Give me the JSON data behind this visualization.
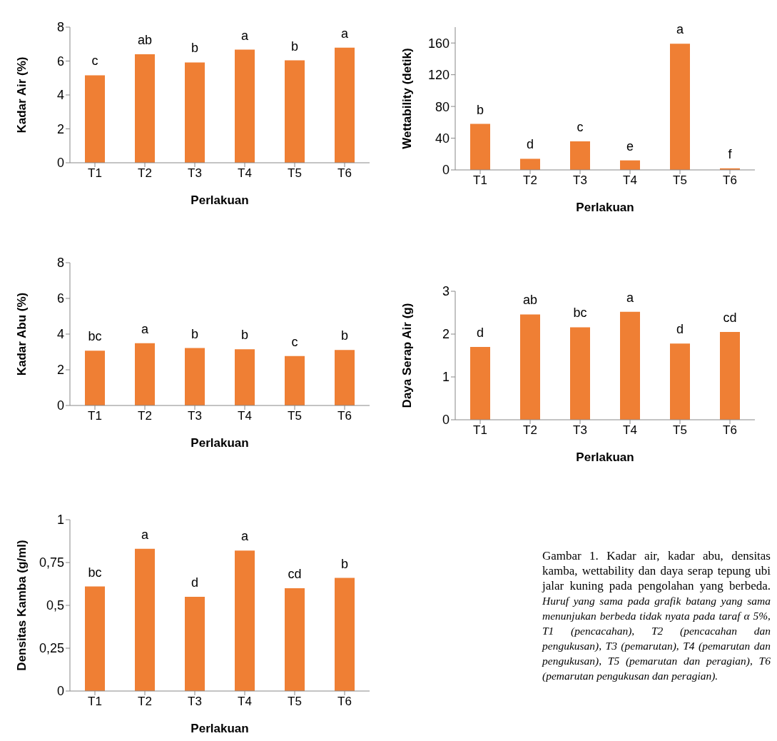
{
  "chart_data": [
    {
      "type": "bar",
      "categories": [
        "T1",
        "T2",
        "T3",
        "T4",
        "T5",
        "T6"
      ],
      "values": [
        5.16,
        6.4,
        5.92,
        6.67,
        6.04,
        6.79
      ],
      "color": "#ef7f34",
      "ylim": [
        0,
        8
      ],
      "yticks": [
        0,
        2,
        4,
        6,
        8
      ],
      "xlabel": "Perlakuan",
      "ylabel": "Kadar Air (%)",
      "annotations": [
        {
          "text": "c",
          "x": "T1",
          "y": 5.16
        },
        {
          "text": "ab",
          "x": "T2",
          "y": 6.4
        },
        {
          "text": "b",
          "x": "T3",
          "y": 5.92
        },
        {
          "text": "a",
          "x": "T4",
          "y": 6.67
        },
        {
          "text": "b",
          "x": "T5",
          "y": 6.04
        },
        {
          "text": "a",
          "x": "T6",
          "y": 6.79
        }
      ]
    },
    {
      "type": "bar",
      "categories": [
        "T1",
        "T2",
        "T3",
        "T4",
        "T5",
        "T6"
      ],
      "values": [
        58,
        14,
        36,
        12,
        159,
        2
      ],
      "color": "#ef7f34",
      "ylim": [
        0,
        180
      ],
      "yticks": [
        0,
        40,
        80,
        120,
        160
      ],
      "xlabel": "Perlakuan",
      "ylabel": "Wettability (detik)",
      "annotations": [
        {
          "text": "b",
          "x": "T1",
          "y": 58
        },
        {
          "text": "d",
          "x": "T2",
          "y": 14
        },
        {
          "text": "c",
          "x": "T3",
          "y": 36
        },
        {
          "text": "e",
          "x": "T4",
          "y": 12
        },
        {
          "text": "a",
          "x": "T5",
          "y": 159
        },
        {
          "text": "f",
          "x": "T6",
          "y": 2
        }
      ]
    },
    {
      "type": "bar",
      "categories": [
        "T1",
        "T2",
        "T3",
        "T4",
        "T5",
        "T6"
      ],
      "values": [
        3.07,
        3.49,
        3.22,
        3.15,
        2.77,
        3.11
      ],
      "color": "#ef7f34",
      "ylim": [
        0,
        8
      ],
      "yticks": [
        0,
        2,
        4,
        6,
        8
      ],
      "xlabel": "Perlakuan",
      "ylabel": "Kadar Abu (%)",
      "annotations": [
        {
          "text": "bc",
          "x": "T1",
          "y": 3.07
        },
        {
          "text": "a",
          "x": "T2",
          "y": 3.49
        },
        {
          "text": "b",
          "x": "T3",
          "y": 3.22
        },
        {
          "text": "b",
          "x": "T4",
          "y": 3.15
        },
        {
          "text": "c",
          "x": "T5",
          "y": 2.77
        },
        {
          "text": "b",
          "x": "T6",
          "y": 3.11
        }
      ]
    },
    {
      "type": "bar",
      "categories": [
        "T1",
        "T2",
        "T3",
        "T4",
        "T5",
        "T6"
      ],
      "values": [
        1.7,
        2.46,
        2.16,
        2.52,
        1.78,
        2.05
      ],
      "color": "#ef7f34",
      "ylim": [
        0,
        3
      ],
      "yticks": [
        0,
        1,
        2,
        3
      ],
      "xlabel": "Perlakuan",
      "ylabel": "Daya Serap Air (g)",
      "annotations": [
        {
          "text": "d",
          "x": "T1",
          "y": 1.7
        },
        {
          "text": "ab",
          "x": "T2",
          "y": 2.46
        },
        {
          "text": "bc",
          "x": "T3",
          "y": 2.16
        },
        {
          "text": "a",
          "x": "T4",
          "y": 2.52
        },
        {
          "text": "d",
          "x": "T5",
          "y": 1.78
        },
        {
          "text": "cd",
          "x": "T6",
          "y": 2.05
        }
      ]
    },
    {
      "type": "bar",
      "categories": [
        "T1",
        "T2",
        "T3",
        "T4",
        "T5",
        "T6"
      ],
      "values": [
        0.61,
        0.83,
        0.55,
        0.82,
        0.6,
        0.66
      ],
      "color": "#ef7f34",
      "ylim": [
        0,
        1
      ],
      "yticks": [
        0,
        {
          "value": 0.25,
          "label": "0,25"
        },
        {
          "value": 0.5,
          "label": "0,5"
        },
        {
          "value": 0.75,
          "label": "0,75"
        },
        1
      ],
      "xlabel": "Perlakuan",
      "ylabel": "Densitas Kamba (g/ml)",
      "annotations": [
        {
          "text": "bc",
          "x": "T1",
          "y": 0.61
        },
        {
          "text": "a",
          "x": "T2",
          "y": 0.83
        },
        {
          "text": "d",
          "x": "T3",
          "y": 0.55
        },
        {
          "text": "a",
          "x": "T4",
          "y": 0.82
        },
        {
          "text": "cd",
          "x": "T5",
          "y": 0.6
        },
        {
          "text": "b",
          "x": "T6",
          "y": 0.66
        }
      ]
    },
    {
      "type": "other",
      "annotations": [
        "Gambar 1. Kadar air, kadar abu, densitas kamba, wettability dan daya serap tepung ubi jalar kuning pada pengolahan yang berbeda.",
        "Huruf yang sama pada grafik batang yang sama menunjukan berbeda tidak nyata pada taraf α 5%, T1 (pencacahan), T2 (pencacahan dan pengukusan), T3 (pemarutan), T4 (pemarutan dan pengukusan), T5 (pemarutan dan peragian), T6 (pemarutan pengukusan dan peragian)."
      ]
    }
  ]
}
